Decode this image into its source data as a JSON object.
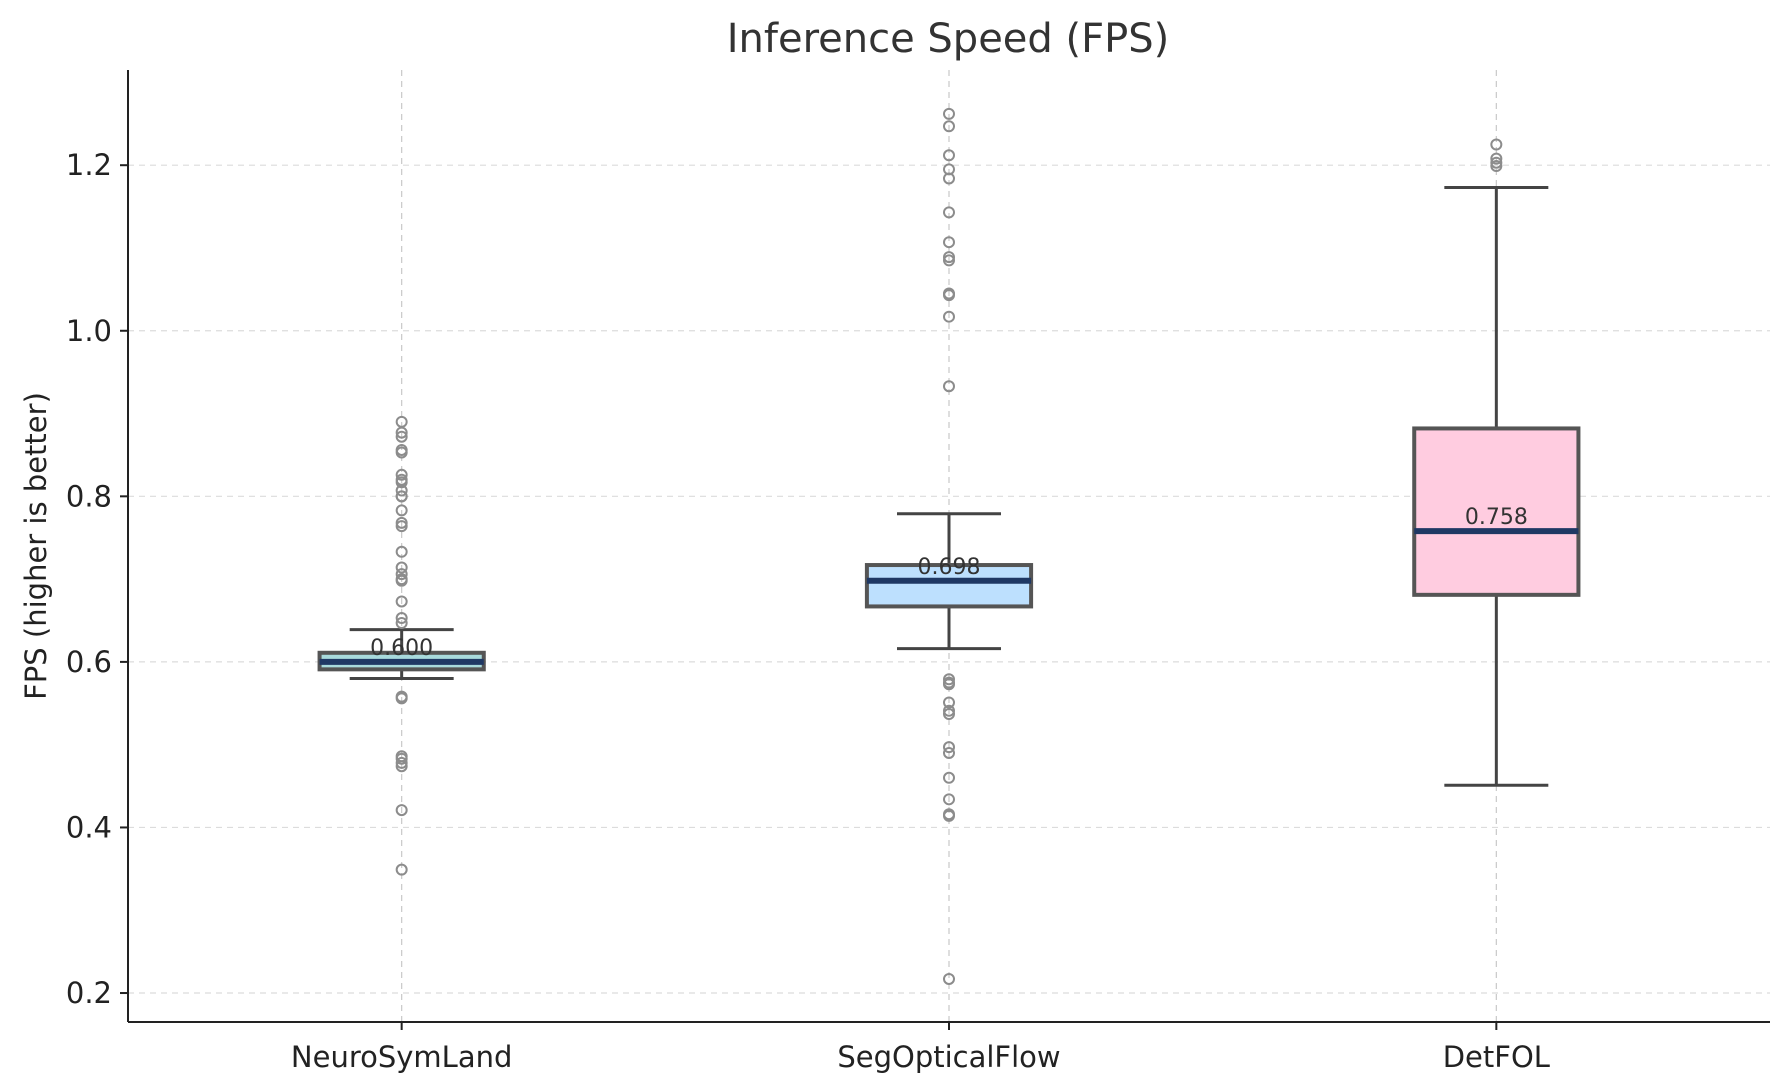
{
  "chart_data": {
    "type": "boxplot",
    "title": "Inference Speed (FPS)",
    "xlabel": "",
    "ylabel": "FPS (higher is better)",
    "ylim": [
      0.165,
      1.315
    ],
    "yticks": [
      0.2,
      0.4,
      0.6,
      0.8,
      1.0,
      1.2
    ],
    "ytick_labels": [
      "0.2",
      "0.4",
      "0.6",
      "0.8",
      "1.0",
      "1.2"
    ],
    "grid": true,
    "categories": [
      "NeuroSymLand",
      "SegOpticalFlow",
      "DetFOL"
    ],
    "series": [
      {
        "name": "NeuroSymLand",
        "color": "#a8dadc",
        "whisker_low": 0.58,
        "q1": 0.591,
        "median": 0.6,
        "q3": 0.611,
        "whisker_high": 0.639,
        "median_label": "0.600",
        "fliers": [
          0.89,
          0.877,
          0.872,
          0.856,
          0.853,
          0.826,
          0.82,
          0.817,
          0.807,
          0.8,
          0.8,
          0.783,
          0.768,
          0.764,
          0.733,
          0.714,
          0.706,
          0.7,
          0.698,
          0.673,
          0.653,
          0.647,
          0.558,
          0.556,
          0.486,
          0.483,
          0.478,
          0.474,
          0.421,
          0.349
        ]
      },
      {
        "name": "SegOpticalFlow",
        "color": "#bde0fe",
        "whisker_low": 0.616,
        "q1": 0.667,
        "median": 0.698,
        "q3": 0.717,
        "whisker_high": 0.779,
        "median_label": "0.698",
        "fliers": [
          1.262,
          1.247,
          1.212,
          1.195,
          1.184,
          1.143,
          1.107,
          1.089,
          1.085,
          1.045,
          1.043,
          1.017,
          0.933,
          0.579,
          0.575,
          0.573,
          0.551,
          0.541,
          0.537,
          0.497,
          0.49,
          0.46,
          0.434,
          0.416,
          0.414,
          0.217
        ]
      },
      {
        "name": "DetFOL",
        "color": "#ffcce0",
        "whisker_low": 0.451,
        "q1": 0.681,
        "median": 0.758,
        "q3": 0.882,
        "whisker_high": 1.173,
        "median_label": "0.758",
        "fliers": [
          1.225,
          1.208,
          1.203,
          1.199
        ]
      }
    ]
  }
}
